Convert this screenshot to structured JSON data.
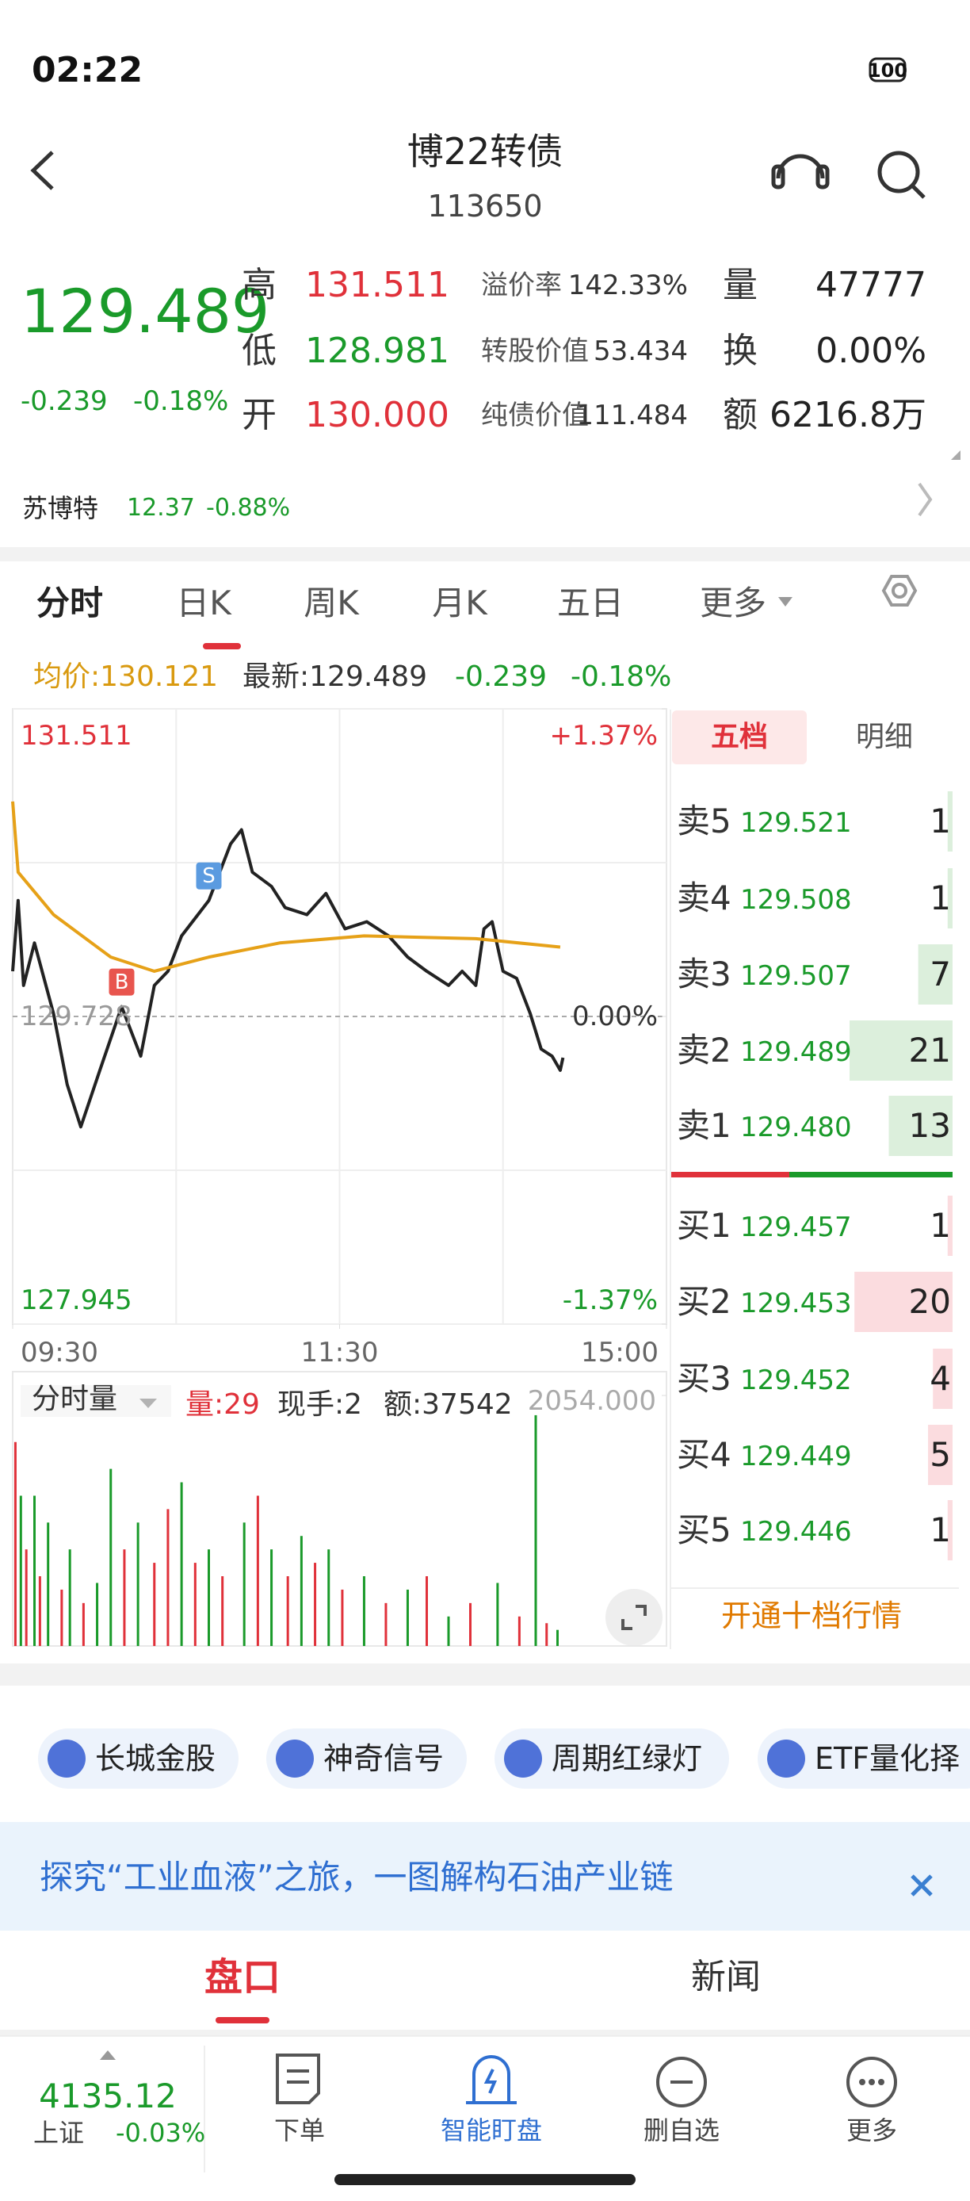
{
  "status": {
    "time": "02:22",
    "battery": "100"
  },
  "header": {
    "title": "博22转债",
    "code": "113650"
  },
  "quote": {
    "price": "129.489",
    "change": "-0.239",
    "change_pct": "-0.18%",
    "stats": [
      {
        "label": "高",
        "value": "131.511"
      },
      {
        "label": "低",
        "value": "128.981"
      },
      {
        "label": "开",
        "value": "130.000"
      }
    ],
    "metrics": [
      {
        "label": "溢价率",
        "value": "142.33%"
      },
      {
        "label": "转股价值",
        "value": "53.434"
      },
      {
        "label": "纯债价值",
        "value": "111.484"
      }
    ],
    "volume": [
      {
        "label": "量",
        "value": "47777"
      },
      {
        "label": "换",
        "value": "0.00%"
      },
      {
        "label": "额",
        "value": "6216.8万"
      }
    ]
  },
  "stock": {
    "name": "苏博特",
    "price": "12.37",
    "change_pct": "-0.88%"
  },
  "tabs": [
    "分时",
    "日K",
    "周K",
    "月K",
    "五日",
    "更多"
  ],
  "chart_info": {
    "avg": "均价:130.121",
    "latest": "最新:129.489",
    "change": "-0.239",
    "change_pct": "-0.18%"
  },
  "chart_data": [
    {
      "type": "line",
      "xlim": [
        0,
        240
      ],
      "xticks": [
        {
          "value": 0,
          "label": "09:30"
        },
        {
          "value": 120,
          "label": "11:30"
        },
        {
          "value": 240,
          "label": "15:00"
        }
      ],
      "ylim": [
        127.945,
        131.511
      ],
      "yticks": [
        127.945,
        129.728,
        131.511
      ],
      "y2lim": [
        -1.37,
        1.37
      ],
      "y2ticks": [
        {
          "value": 1.37,
          "label": "+1.37%"
        },
        {
          "value": 0,
          "label": "0.00%"
        },
        {
          "value": -1.37,
          "label": "-1.37%"
        }
      ],
      "grid": true,
      "series": [
        {
          "color": "#222222",
          "x": [
            0,
            2,
            4,
            8,
            15,
            20,
            25,
            32,
            40,
            47,
            52,
            57,
            62,
            68,
            72,
            80,
            84,
            88,
            95,
            100,
            108,
            115,
            122,
            130,
            138,
            145,
            152,
            160,
            165,
            170,
            173,
            176,
            180,
            185,
            190,
            194,
            198,
            201,
            202
          ],
          "values": [
            129.99,
            130.4,
            129.908,
            130.154,
            129.744,
            129.334,
            129.088,
            129.416,
            129.785,
            129.498,
            129.908,
            129.99,
            130.195,
            130.318,
            130.4,
            130.728,
            130.81,
            130.564,
            130.482,
            130.359,
            130.318,
            130.441,
            130.236,
            130.277,
            130.195,
            130.072,
            129.99,
            129.908,
            129.99,
            129.908,
            130.236,
            130.277,
            129.99,
            129.949,
            129.744,
            129.539,
            129.498,
            129.416,
            129.489
          ]
        },
        {
          "color": "#e6a118",
          "x": [
            0,
            2,
            15,
            36,
            52,
            72,
            98,
            129,
            170,
            201
          ],
          "values": [
            130.974,
            130.564,
            130.318,
            130.072,
            129.99,
            130.072,
            130.154,
            130.195,
            130.179,
            130.13
          ]
        }
      ],
      "markers": [
        {
          "label": "B",
          "x": 40,
          "y": 129.785,
          "color": "#e8554e"
        },
        {
          "label": "S",
          "x": 72,
          "y": 130.4,
          "color": "#5b9be0"
        }
      ]
    },
    {
      "type": "bar",
      "xlim": [
        0,
        240
      ],
      "ylim": [
        0,
        2054
      ],
      "yticks": [
        {
          "value": 2054,
          "label": "2054.000"
        }
      ],
      "x": [
        1,
        3,
        5,
        8,
        10,
        13,
        18,
        21,
        26,
        31,
        36,
        41,
        46,
        52,
        57,
        62,
        67,
        72,
        77,
        85,
        90,
        95,
        101,
        106,
        111,
        116,
        121,
        129,
        137,
        145,
        152,
        160,
        168,
        178,
        186,
        192,
        196,
        200
      ],
      "values": [
        1672,
        1232,
        792,
        1232,
        572,
        1012,
        462,
        792,
        352,
        517,
        1452,
        792,
        1012,
        682,
        1122,
        1342,
        682,
        792,
        572,
        1012,
        1232,
        792,
        572,
        902,
        682,
        792,
        462,
        572,
        352,
        462,
        572,
        242,
        352,
        517,
        242,
        1892,
        187,
        132
      ],
      "colors": [
        "#e0313a",
        "#1a9a2a",
        "#e0313a",
        "#1a9a2a",
        "#e0313a",
        "#1a9a2a",
        "#e0313a",
        "#1a9a2a",
        "#e0313a",
        "#1a9a2a",
        "#1a9a2a",
        "#e0313a",
        "#1a9a2a",
        "#e0313a",
        "#e0313a",
        "#1a9a2a",
        "#e0313a",
        "#1a9a2a",
        "#e0313a",
        "#1a9a2a",
        "#e0313a",
        "#1a9a2a",
        "#e0313a",
        "#1a9a2a",
        "#e0313a",
        "#1a9a2a",
        "#e0313a",
        "#1a9a2a",
        "#e0313a",
        "#1a9a2a",
        "#e0313a",
        "#1a9a2a",
        "#e0313a",
        "#1a9a2a",
        "#e0313a",
        "#1a9a2a",
        "#e0313a",
        "#1a9a2a"
      ]
    }
  ],
  "volume_info": {
    "selector": "分时量",
    "volume": "量:29",
    "hand": "现手:2",
    "amount": "额:37542"
  },
  "order_book": {
    "tabs": [
      "五档",
      "明细"
    ],
    "asks": [
      {
        "label": "卖5",
        "price": "129.521",
        "volume": 1
      },
      {
        "label": "卖4",
        "price": "129.508",
        "volume": 1
      },
      {
        "label": "卖3",
        "price": "129.507",
        "volume": 7
      },
      {
        "label": "卖2",
        "price": "129.489",
        "volume": 21
      },
      {
        "label": "卖1",
        "price": "129.480",
        "volume": 13
      }
    ],
    "bids": [
      {
        "label": "买1",
        "price": "129.457",
        "volume": 1
      },
      {
        "label": "买2",
        "price": "129.453",
        "volume": 20
      },
      {
        "label": "买3",
        "price": "129.452",
        "volume": 4
      },
      {
        "label": "买4",
        "price": "129.449",
        "volume": 5
      },
      {
        "label": "买5",
        "price": "129.446",
        "volume": 1
      }
    ],
    "upgrade": "开通十档行情"
  },
  "tools": [
    "长城金股",
    "神奇信号",
    "周期红绿灯",
    "ETF量化择"
  ],
  "banner": "探究“工业血液”之旅，一图解构石油产业链",
  "bottom_tabs": [
    "盘口",
    "新闻"
  ],
  "nav": {
    "index": {
      "value": "4135.12",
      "name": "上证",
      "change_pct": "-0.03%"
    },
    "items": [
      "下单",
      "智能盯盘",
      "删自选",
      "更多"
    ]
  }
}
